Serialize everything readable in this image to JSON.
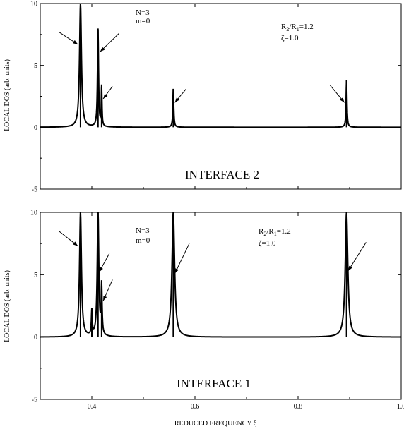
{
  "chart_data": [
    {
      "type": "line",
      "title": "",
      "panel_label": "INTERFACE 2",
      "ylabel": "LOCAL DOS (arb. units)",
      "xlabel": "",
      "xlim": [
        0.3,
        1.0
      ],
      "ylim": [
        -5,
        10
      ],
      "yticks": [
        -5,
        0,
        5,
        10
      ],
      "xticks": [
        0.4,
        0.6,
        0.8,
        1.0
      ],
      "xtick_labels": [],
      "annotations": {
        "n_label": "N=3",
        "m_label": "m=0",
        "ratio_prefix": "R",
        "ratio_sub1": "2",
        "ratio_mid": "/R",
        "ratio_sub2": "1",
        "ratio_value": "=1.2",
        "zeta_label": "ζ=1.0"
      },
      "peaks": [
        {
          "x": 0.378,
          "height": 10.0,
          "width": 0.0022
        },
        {
          "x": 0.412,
          "height": 7.9,
          "width": 0.0012
        },
        {
          "x": 0.419,
          "height": 3.2,
          "width": 0.0008
        },
        {
          "x": 0.558,
          "height": 3.1,
          "width": 0.001
        },
        {
          "x": 0.894,
          "height": 3.8,
          "width": 0.001
        }
      ],
      "arrows": [
        {
          "from": [
            0.336,
            7.7
          ],
          "to": [
            0.373,
            6.7
          ]
        },
        {
          "from": [
            0.453,
            7.6
          ],
          "to": [
            0.416,
            6.1
          ]
        },
        {
          "from": [
            0.44,
            3.3
          ],
          "to": [
            0.422,
            2.3
          ]
        },
        {
          "from": [
            0.583,
            3.1
          ],
          "to": [
            0.561,
            2.0
          ]
        },
        {
          "from": [
            0.862,
            3.4
          ],
          "to": [
            0.89,
            2.0
          ]
        }
      ]
    },
    {
      "type": "line",
      "title": "",
      "panel_label": "INTERFACE 1",
      "ylabel": "LOCAL DOS (arb. units)",
      "xlabel": "REDUCED FREQUENCY ξ",
      "xlim": [
        0.3,
        1.0
      ],
      "ylim": [
        -5,
        10
      ],
      "yticks": [
        -5,
        0,
        5,
        10
      ],
      "xticks": [
        0.4,
        0.6,
        0.8,
        1.0
      ],
      "xtick_labels": [
        "0.4",
        "0.6",
        "0.8",
        "1.0"
      ],
      "annotations": {
        "n_label": "N=3",
        "m_label": "m=0",
        "ratio_prefix": "R",
        "ratio_sub1": "2",
        "ratio_mid": "/R",
        "ratio_sub2": "1",
        "ratio_value": "=1.2",
        "zeta_label": "ζ=1.0"
      },
      "peaks": [
        {
          "x": 0.378,
          "height": 10.0,
          "width": 0.0022
        },
        {
          "x": 0.4,
          "height": 2.0,
          "width": 0.001
        },
        {
          "x": 0.412,
          "height": 10.0,
          "width": 0.0018
        },
        {
          "x": 0.419,
          "height": 3.9,
          "width": 0.001
        },
        {
          "x": 0.558,
          "height": 10.0,
          "width": 0.003
        },
        {
          "x": 0.894,
          "height": 10.0,
          "width": 0.003
        }
      ],
      "arrows": [
        {
          "from": [
            0.336,
            8.5
          ],
          "to": [
            0.373,
            7.3
          ]
        },
        {
          "from": [
            0.434,
            6.7
          ],
          "to": [
            0.414,
            5.2
          ]
        },
        {
          "from": [
            0.44,
            4.6
          ],
          "to": [
            0.422,
            2.9
          ]
        },
        {
          "from": [
            0.589,
            7.5
          ],
          "to": [
            0.561,
            5.1
          ]
        },
        {
          "from": [
            0.932,
            7.6
          ],
          "to": [
            0.897,
            5.3
          ]
        }
      ]
    }
  ]
}
